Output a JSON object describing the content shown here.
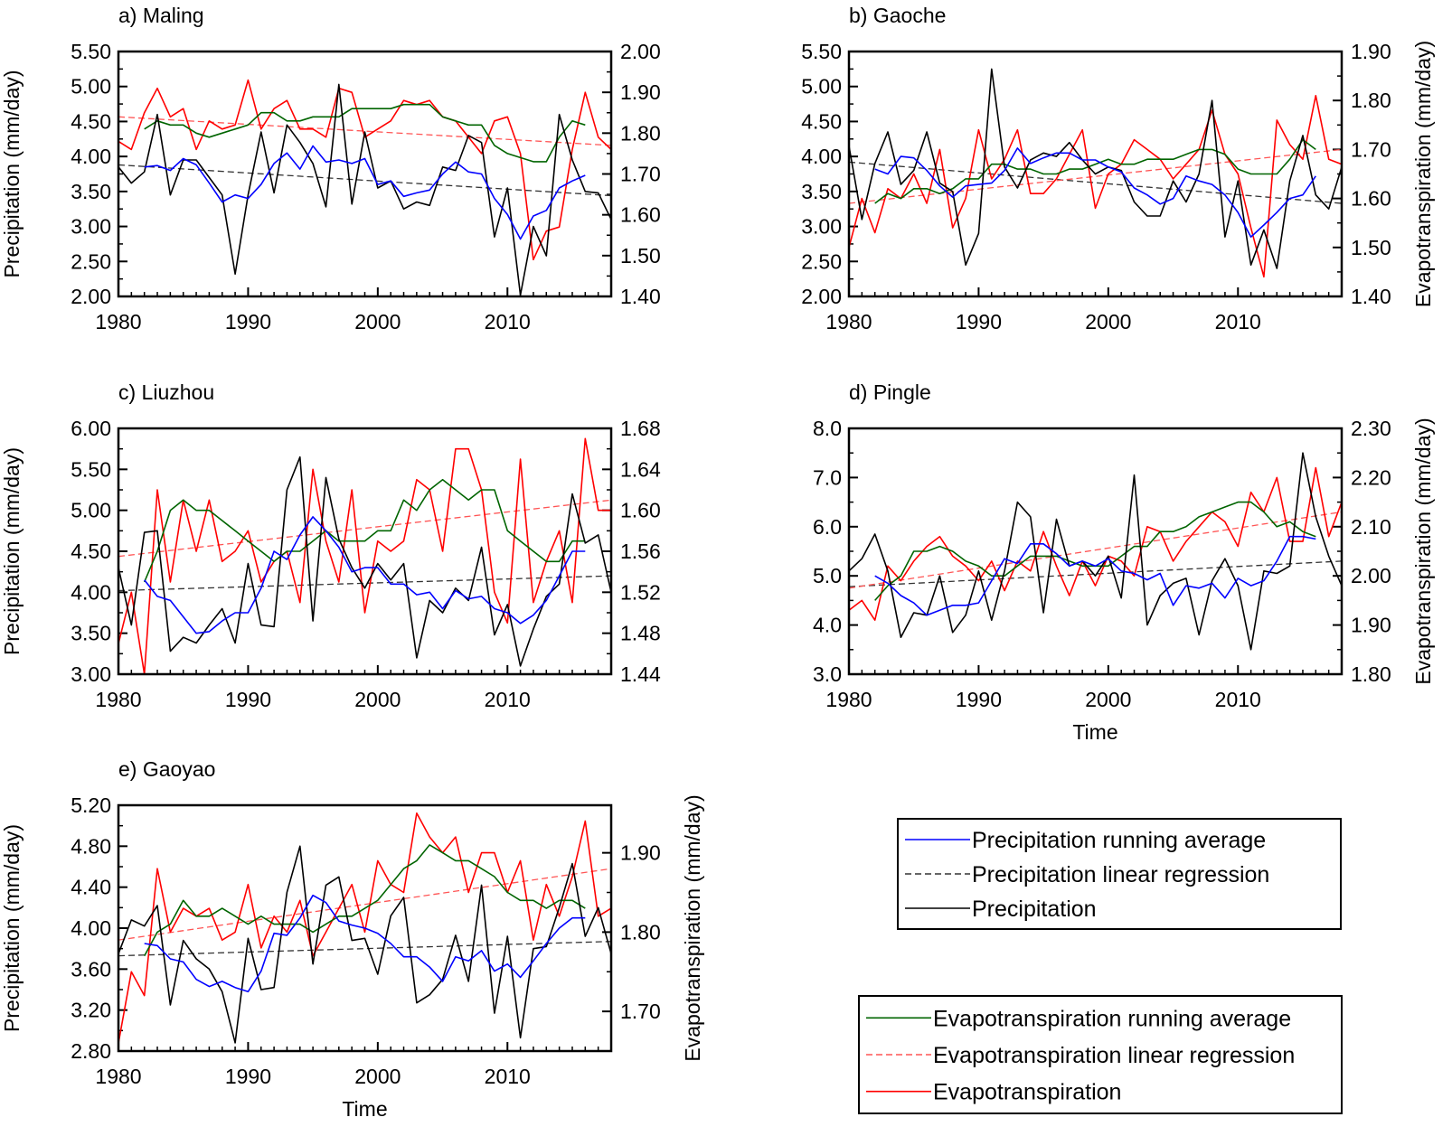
{
  "chart_data": [
    {
      "id": "maling",
      "type": "line",
      "title": "a) Maling",
      "xlabel": "",
      "ylabel_left": "Precipitation (mm/day)",
      "ylabel_right": "",
      "xlim": [
        1980,
        2018
      ],
      "ylim_left": [
        2.0,
        5.5
      ],
      "ylim_right": [
        1.4,
        2.0
      ],
      "xticks": [
        1980,
        1990,
        2000,
        2010
      ],
      "yticks_left": [
        2.0,
        2.5,
        3.0,
        3.5,
        4.0,
        4.5,
        5.0,
        5.5
      ],
      "yticks_right": [
        1.4,
        1.5,
        1.6,
        1.7,
        1.8,
        1.9,
        2.0
      ],
      "ytick_decimals_left": 2,
      "ytick_decimals_right": 2,
      "years": [
        1980,
        1981,
        1982,
        1983,
        1984,
        1985,
        1986,
        1987,
        1988,
        1989,
        1990,
        1991,
        1992,
        1993,
        1994,
        1995,
        1996,
        1997,
        1998,
        1999,
        2000,
        2001,
        2002,
        2003,
        2004,
        2005,
        2006,
        2007,
        2008,
        2009,
        2010,
        2011,
        2012,
        2013,
        2014,
        2015,
        2016,
        2017,
        2018
      ],
      "precipitation": [
        3.85,
        3.62,
        3.78,
        4.6,
        3.45,
        3.95,
        3.95,
        3.7,
        3.45,
        2.32,
        3.45,
        4.35,
        3.48,
        4.45,
        4.2,
        3.9,
        3.28,
        5.03,
        3.32,
        4.35,
        3.55,
        3.65,
        3.25,
        3.35,
        3.3,
        3.85,
        3.8,
        4.3,
        4.2,
        2.85,
        3.55,
        2.02,
        3.0,
        2.58,
        4.6,
        3.95,
        3.5,
        3.48,
        3.1
      ],
      "precip_running_avg": [
        null,
        null,
        3.85,
        3.87,
        3.8,
        3.97,
        3.88,
        3.62,
        3.35,
        3.45,
        3.4,
        3.6,
        3.9,
        4.05,
        3.82,
        4.15,
        3.92,
        3.95,
        3.9,
        3.97,
        3.6,
        3.65,
        3.43,
        3.48,
        3.52,
        3.75,
        3.92,
        3.78,
        3.75,
        3.4,
        3.17,
        2.82,
        3.15,
        3.23,
        3.55,
        3.65,
        3.73,
        null,
        null
      ],
      "precip_trend": [
        3.88,
        3.44
      ],
      "evapotranspiration": [
        1.78,
        1.76,
        1.85,
        1.91,
        1.84,
        1.86,
        1.76,
        1.83,
        1.81,
        1.82,
        1.93,
        1.81,
        1.86,
        1.88,
        1.81,
        1.81,
        1.79,
        1.91,
        1.9,
        1.79,
        1.81,
        1.83,
        1.88,
        1.87,
        1.88,
        1.84,
        1.83,
        1.79,
        1.75,
        1.83,
        1.84,
        1.75,
        1.49,
        1.56,
        1.57,
        1.76,
        1.9,
        1.79,
        1.76
      ],
      "et_running_avg": [
        null,
        null,
        1.81,
        1.83,
        1.82,
        1.82,
        1.8,
        1.79,
        1.8,
        1.81,
        1.82,
        1.85,
        1.85,
        1.83,
        1.83,
        1.84,
        1.84,
        1.84,
        1.86,
        1.86,
        1.86,
        1.86,
        1.87,
        1.87,
        1.87,
        1.84,
        1.83,
        1.82,
        1.82,
        1.77,
        1.75,
        1.74,
        1.73,
        1.73,
        1.79,
        1.83,
        1.82,
        null,
        null
      ],
      "et_trend": [
        1.84,
        1.77
      ]
    },
    {
      "id": "gaoche",
      "type": "line",
      "title": "b) Gaoche",
      "xlabel": "",
      "ylabel_left": "",
      "ylabel_right": "Evapotranspiration (mm/day)",
      "xlim": [
        1980,
        2018
      ],
      "ylim_left": [
        2.0,
        5.5
      ],
      "ylim_right": [
        1.4,
        1.9
      ],
      "xticks": [
        1980,
        1990,
        2000,
        2010
      ],
      "yticks_left": [
        2.0,
        2.5,
        3.0,
        3.5,
        4.0,
        4.5,
        5.0,
        5.5
      ],
      "yticks_right": [
        1.4,
        1.5,
        1.6,
        1.7,
        1.8,
        1.9
      ],
      "ytick_decimals_left": 2,
      "ytick_decimals_right": 2,
      "years": [
        1980,
        1981,
        1982,
        1983,
        1984,
        1985,
        1986,
        1987,
        1988,
        1989,
        1990,
        1991,
        1992,
        1993,
        1994,
        1995,
        1996,
        1997,
        1998,
        1999,
        2000,
        2001,
        2002,
        2003,
        2004,
        2005,
        2006,
        2007,
        2008,
        2009,
        2010,
        2011,
        2012,
        2013,
        2014,
        2015,
        2016,
        2017,
        2018
      ],
      "precipitation": [
        4.15,
        3.1,
        3.9,
        4.35,
        3.6,
        3.8,
        4.35,
        3.62,
        3.5,
        2.45,
        2.9,
        5.25,
        3.85,
        3.55,
        3.95,
        4.05,
        4.0,
        4.2,
        3.95,
        3.75,
        3.85,
        3.8,
        3.35,
        3.15,
        3.15,
        3.65,
        3.35,
        3.75,
        4.8,
        2.85,
        3.65,
        2.45,
        2.95,
        2.4,
        3.65,
        4.3,
        3.45,
        3.25,
        3.85
      ],
      "precip_running_avg": [
        null,
        null,
        3.82,
        3.75,
        4.0,
        3.98,
        3.8,
        3.58,
        3.42,
        3.58,
        3.6,
        3.62,
        3.8,
        4.12,
        3.9,
        3.98,
        4.05,
        4.05,
        3.95,
        3.95,
        3.85,
        3.78,
        3.55,
        3.45,
        3.32,
        3.4,
        3.72,
        3.65,
        3.6,
        3.45,
        3.2,
        2.85,
        3.02,
        3.2,
        3.4,
        3.45,
        3.72,
        null,
        null
      ],
      "precip_trend": [
        3.92,
        3.33
      ],
      "evapotranspiration": [
        1.5,
        1.6,
        1.53,
        1.62,
        1.6,
        1.65,
        1.59,
        1.7,
        1.54,
        1.6,
        1.74,
        1.64,
        1.68,
        1.74,
        1.61,
        1.61,
        1.64,
        1.69,
        1.74,
        1.58,
        1.65,
        1.67,
        1.72,
        1.7,
        1.68,
        1.64,
        1.67,
        1.7,
        1.78,
        1.69,
        1.65,
        1.54,
        1.44,
        1.76,
        1.71,
        1.68,
        1.81,
        1.68,
        1.67
      ],
      "et_running_avg": [
        null,
        null,
        1.59,
        1.61,
        1.6,
        1.62,
        1.62,
        1.61,
        1.62,
        1.64,
        1.64,
        1.67,
        1.67,
        1.66,
        1.66,
        1.65,
        1.65,
        1.66,
        1.66,
        1.67,
        1.68,
        1.67,
        1.67,
        1.68,
        1.68,
        1.68,
        1.69,
        1.7,
        1.7,
        1.69,
        1.66,
        1.65,
        1.65,
        1.65,
        1.68,
        1.72,
        1.7,
        null,
        null
      ],
      "et_trend": [
        1.59,
        1.7
      ]
    },
    {
      "id": "liuzhou",
      "type": "line",
      "title": "c) Liuzhou",
      "xlabel": "",
      "ylabel_left": "Precipitation (mm/day)",
      "ylabel_right": "",
      "xlim": [
        1980,
        2018
      ],
      "ylim_left": [
        3.0,
        6.0
      ],
      "ylim_right": [
        1.44,
        1.68
      ],
      "xticks": [
        1980,
        1990,
        2000,
        2010
      ],
      "yticks_left": [
        3.0,
        3.5,
        4.0,
        4.5,
        5.0,
        5.5,
        6.0
      ],
      "yticks_right": [
        1.44,
        1.48,
        1.52,
        1.56,
        1.6,
        1.64,
        1.68
      ],
      "ytick_decimals_left": 2,
      "ytick_decimals_right": 2,
      "years": [
        1980,
        1981,
        1982,
        1983,
        1984,
        1985,
        1986,
        1987,
        1988,
        1989,
        1990,
        1991,
        1992,
        1993,
        1994,
        1995,
        1996,
        1997,
        1998,
        1999,
        2000,
        2001,
        2002,
        2003,
        2004,
        2005,
        2006,
        2007,
        2008,
        2009,
        2010,
        2011,
        2012,
        2013,
        2014,
        2015,
        2016,
        2017,
        2018
      ],
      "precipitation": [
        4.3,
        3.6,
        4.73,
        4.75,
        3.28,
        3.45,
        3.38,
        3.6,
        3.8,
        3.38,
        4.35,
        3.6,
        3.58,
        5.25,
        5.65,
        3.65,
        5.4,
        4.65,
        4.3,
        4.05,
        4.35,
        4.15,
        4.35,
        3.2,
        3.9,
        3.75,
        4.05,
        3.9,
        4.55,
        3.48,
        3.85,
        3.1,
        3.55,
        3.95,
        4.1,
        5.2,
        4.6,
        4.7,
        4.0
      ],
      "precip_running_avg": [
        null,
        null,
        4.15,
        3.95,
        3.9,
        3.7,
        3.5,
        3.52,
        3.65,
        3.75,
        3.75,
        4.05,
        4.5,
        4.4,
        4.7,
        4.92,
        4.75,
        4.55,
        4.25,
        4.3,
        4.3,
        4.1,
        4.1,
        3.97,
        4.0,
        3.8,
        4.02,
        3.92,
        3.95,
        3.8,
        3.75,
        3.62,
        3.72,
        3.9,
        4.2,
        4.5,
        4.5,
        null,
        null
      ],
      "precip_trend": [
        4.02,
        4.2
      ],
      "evapotranspiration": [
        1.47,
        1.52,
        1.44,
        1.62,
        1.53,
        1.61,
        1.56,
        1.61,
        1.55,
        1.56,
        1.58,
        1.53,
        1.55,
        1.56,
        1.51,
        1.64,
        1.57,
        1.53,
        1.62,
        1.5,
        1.57,
        1.56,
        1.57,
        1.63,
        1.62,
        1.56,
        1.66,
        1.66,
        1.62,
        1.52,
        1.49,
        1.65,
        1.51,
        1.55,
        1.58,
        1.51,
        1.67,
        1.6,
        1.6
      ],
      "et_running_avg": [
        null,
        null,
        1.53,
        1.56,
        1.6,
        1.61,
        1.6,
        1.6,
        1.59,
        1.58,
        1.57,
        1.56,
        1.55,
        1.56,
        1.56,
        1.57,
        1.58,
        1.57,
        1.57,
        1.57,
        1.58,
        1.58,
        1.61,
        1.6,
        1.62,
        1.63,
        1.62,
        1.61,
        1.62,
        1.62,
        1.58,
        1.57,
        1.56,
        1.55,
        1.55,
        1.57,
        1.57,
        null,
        null
      ],
      "et_trend": [
        1.555,
        1.61
      ]
    },
    {
      "id": "pingle",
      "type": "line",
      "title": "d) Pingle",
      "xlabel": "Time",
      "ylabel_left": "",
      "ylabel_right": "Evapotranspiration (mm/day)",
      "xlim": [
        1980,
        2018
      ],
      "ylim_left": [
        3.0,
        8.0
      ],
      "ylim_right": [
        1.8,
        2.3
      ],
      "xticks": [
        1980,
        1990,
        2000,
        2010
      ],
      "yticks_left": [
        3.0,
        4.0,
        5.0,
        6.0,
        7.0,
        8.0
      ],
      "yticks_right": [
        1.8,
        1.9,
        2.0,
        2.1,
        2.2,
        2.3
      ],
      "ytick_decimals_left": 1,
      "ytick_decimals_right": 2,
      "years": [
        1980,
        1981,
        1982,
        1983,
        1984,
        1985,
        1986,
        1987,
        1988,
        1989,
        1990,
        1991,
        1992,
        1993,
        1994,
        1995,
        1996,
        1997,
        1998,
        1999,
        2000,
        2001,
        2002,
        2003,
        2004,
        2005,
        2006,
        2007,
        2008,
        2009,
        2010,
        2011,
        2012,
        2013,
        2014,
        2015,
        2016,
        2017,
        2018
      ],
      "precipitation": [
        5.1,
        5.35,
        5.85,
        5.1,
        3.75,
        4.25,
        4.2,
        5.0,
        3.85,
        4.2,
        5.1,
        4.1,
        5.1,
        6.5,
        6.2,
        4.25,
        6.15,
        5.2,
        5.3,
        5.0,
        5.4,
        4.55,
        7.05,
        4.0,
        4.6,
        4.85,
        4.95,
        3.8,
        4.9,
        5.35,
        4.8,
        3.5,
        5.1,
        5.05,
        5.2,
        7.5,
        6.2,
        5.4,
        4.8
      ],
      "precip_running_avg": [
        null,
        null,
        5.0,
        4.85,
        4.6,
        4.45,
        4.2,
        4.3,
        4.4,
        4.4,
        4.45,
        4.9,
        5.35,
        5.25,
        5.65,
        5.65,
        5.45,
        5.2,
        5.3,
        5.2,
        5.35,
        5.1,
        5.05,
        4.92,
        5.05,
        4.4,
        4.8,
        4.75,
        4.85,
        4.55,
        4.95,
        4.8,
        4.9,
        5.3,
        5.8,
        5.8,
        5.75,
        null,
        null
      ],
      "precip_trend": [
        4.78,
        5.3
      ],
      "evapotranspiration": [
        1.93,
        1.95,
        1.91,
        2.02,
        1.99,
        2.03,
        2.06,
        2.08,
        2.04,
        2.02,
        1.99,
        2.03,
        1.97,
        2.03,
        2.01,
        2.09,
        2.02,
        1.96,
        2.03,
        1.98,
        2.04,
        2.03,
        2.0,
        2.1,
        2.09,
        2.03,
        2.07,
        2.1,
        2.13,
        2.11,
        2.06,
        2.17,
        2.13,
        2.2,
        2.07,
        2.07,
        2.22,
        2.08,
        2.15
      ],
      "et_running_avg": [
        null,
        null,
        1.95,
        1.98,
        2.0,
        2.05,
        2.05,
        2.06,
        2.05,
        2.03,
        2.02,
        2.0,
        2.0,
        2.02,
        2.04,
        2.04,
        2.04,
        2.03,
        2.02,
        2.02,
        2.02,
        2.04,
        2.06,
        2.06,
        2.09,
        2.09,
        2.1,
        2.12,
        2.13,
        2.14,
        2.15,
        2.15,
        2.13,
        2.1,
        2.11,
        2.09,
        2.08,
        null,
        null
      ],
      "et_trend": [
        1.975,
        2.13
      ]
    },
    {
      "id": "gaoyao",
      "type": "line",
      "title": "e) Gaoyao",
      "xlabel": "Time",
      "ylabel_left": "Precipitation (mm/day)",
      "ylabel_right": "Evapotranspiration (mm/day)",
      "xlim": [
        1980,
        2018
      ],
      "ylim_left": [
        2.8,
        5.2
      ],
      "ylim_right": [
        1.65,
        1.96
      ],
      "xticks": [
        1980,
        1990,
        2000,
        2010
      ],
      "yticks_left": [
        2.8,
        3.2,
        3.6,
        4.0,
        4.4,
        4.8,
        5.2
      ],
      "yticks_right": [
        1.7,
        1.8,
        1.9
      ],
      "ytick_decimals_left": 2,
      "ytick_decimals_right": 2,
      "years": [
        1980,
        1981,
        1982,
        1983,
        1984,
        1985,
        1986,
        1987,
        1988,
        1989,
        1990,
        1991,
        1992,
        1993,
        1994,
        1995,
        1996,
        1997,
        1998,
        1999,
        2000,
        2001,
        2002,
        2003,
        2004,
        2005,
        2006,
        2007,
        2008,
        2009,
        2010,
        2011,
        2012,
        2013,
        2014,
        2015,
        2016,
        2017,
        2018
      ],
      "precipitation": [
        3.75,
        4.08,
        4.02,
        4.22,
        3.25,
        3.88,
        3.7,
        3.6,
        3.38,
        2.88,
        3.9,
        3.4,
        3.42,
        4.35,
        4.8,
        3.65,
        4.42,
        4.5,
        3.88,
        3.9,
        3.55,
        4.12,
        4.3,
        3.27,
        3.35,
        3.5,
        3.93,
        3.48,
        4.42,
        3.17,
        3.92,
        2.93,
        3.8,
        3.82,
        4.2,
        4.63,
        3.92,
        4.2,
        3.75
      ],
      "precip_running_avg": [
        null,
        null,
        3.85,
        3.83,
        3.7,
        3.67,
        3.5,
        3.43,
        3.48,
        3.42,
        3.38,
        3.58,
        3.95,
        3.93,
        4.1,
        4.32,
        4.25,
        4.07,
        4.03,
        4.0,
        3.95,
        3.85,
        3.72,
        3.72,
        3.62,
        3.48,
        3.72,
        3.68,
        3.78,
        3.58,
        3.65,
        3.52,
        3.68,
        3.85,
        4.0,
        4.1,
        4.1,
        null,
        null
      ],
      "precip_trend": [
        3.73,
        3.87
      ],
      "evapotranspiration": [
        1.66,
        1.75,
        1.72,
        1.88,
        1.8,
        1.83,
        1.82,
        1.83,
        1.79,
        1.8,
        1.86,
        1.78,
        1.82,
        1.8,
        1.84,
        1.77,
        1.8,
        1.83,
        1.86,
        1.8,
        1.89,
        1.86,
        1.85,
        1.95,
        1.92,
        1.9,
        1.92,
        1.85,
        1.9,
        1.9,
        1.85,
        1.89,
        1.79,
        1.86,
        1.82,
        1.87,
        1.94,
        1.82,
        1.83
      ],
      "et_running_avg": [
        null,
        null,
        1.77,
        1.8,
        1.81,
        1.84,
        1.82,
        1.82,
        1.83,
        1.82,
        1.81,
        1.82,
        1.81,
        1.81,
        1.81,
        1.8,
        1.81,
        1.82,
        1.82,
        1.83,
        1.84,
        1.86,
        1.88,
        1.89,
        1.91,
        1.9,
        1.89,
        1.89,
        1.88,
        1.87,
        1.85,
        1.84,
        1.84,
        1.83,
        1.84,
        1.84,
        1.83,
        null,
        null
      ],
      "et_trend": [
        1.79,
        1.88
      ]
    }
  ],
  "legends": [
    {
      "id": "precip-legend",
      "entries": [
        {
          "label": "Precipitation running average",
          "color": "#0000ff",
          "style": "solid"
        },
        {
          "label": "Precipitation linear regression",
          "color": "#333333",
          "style": "dashed"
        },
        {
          "label": "Precipitation",
          "color": "#000000",
          "style": "solid"
        }
      ]
    },
    {
      "id": "et-legend",
      "entries": [
        {
          "label": "Evapotranspiration running average",
          "color": "#006400",
          "style": "solid"
        },
        {
          "label": "Evapotranspiration linear regression",
          "color": "#ff5555",
          "style": "dashed"
        },
        {
          "label": "Evapotranspiration",
          "color": "#ff0000",
          "style": "solid"
        }
      ]
    }
  ],
  "colors": {
    "precipitation": "#000000",
    "precip_running_avg": "#0000ff",
    "precip_trend": "#333333",
    "evapotranspiration": "#ff0000",
    "et_running_avg": "#006400",
    "et_trend": "#ff5555"
  }
}
